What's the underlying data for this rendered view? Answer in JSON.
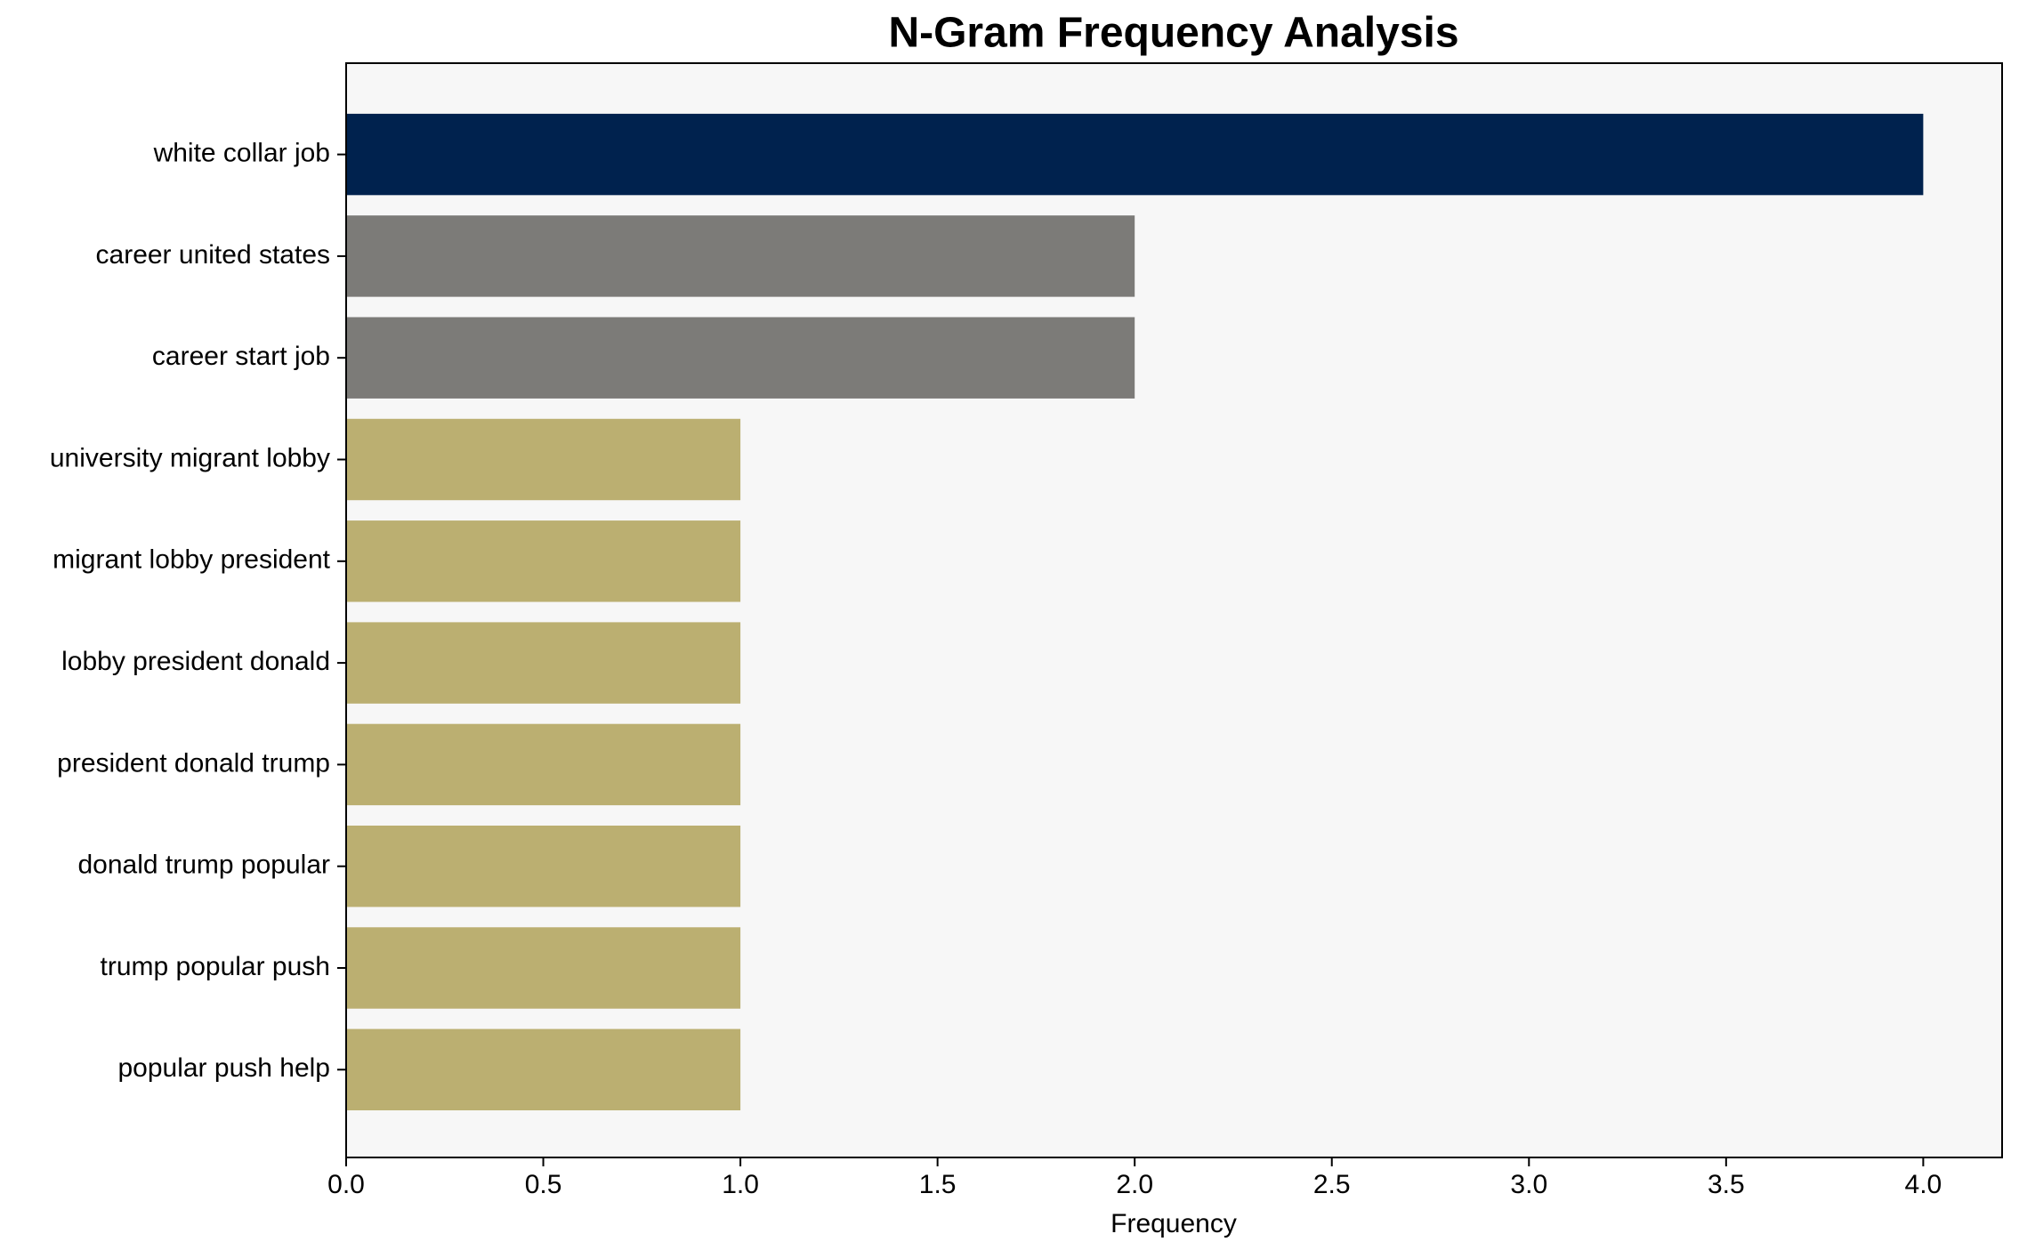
{
  "chart_data": {
    "type": "barh",
    "title": "N-Gram Frequency Analysis",
    "xlabel": "Frequency",
    "categories": [
      "white collar job",
      "career united states",
      "career start job",
      "university migrant lobby",
      "migrant lobby president",
      "lobby president donald",
      "president donald trump",
      "donald trump popular",
      "trump popular push",
      "popular push help"
    ],
    "values": [
      4,
      2,
      2,
      1,
      1,
      1,
      1,
      1,
      1,
      1
    ],
    "colors": [
      "#00224e",
      "#7c7b78",
      "#7c7b78",
      "#bbaf71",
      "#bbaf71",
      "#bbaf71",
      "#bbaf71",
      "#bbaf71",
      "#bbaf71",
      "#bbaf71"
    ],
    "xlim": [
      0,
      4.2
    ],
    "xticks": [
      {
        "value": 0,
        "label": "0.0"
      },
      0.5,
      {
        "value": 1,
        "label": "1.0"
      },
      1.5,
      {
        "value": 2,
        "label": "2.0"
      },
      2.5,
      {
        "value": 3,
        "label": "3.0"
      },
      3.5,
      {
        "value": 4,
        "label": "4.0"
      }
    ],
    "grid": false
  }
}
